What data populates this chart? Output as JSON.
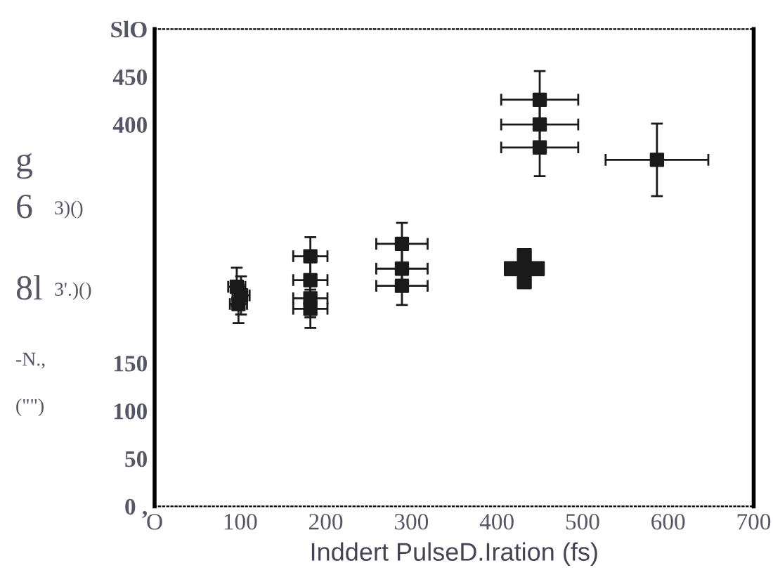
{
  "chart_data": {
    "type": "scatter",
    "xlabel": "Inddert PulseD.Iration (fs)",
    "annotations": [
      "g",
      "6",
      "3)()",
      "8l",
      "3'.)()",
      "-N.,",
      "(\"\")"
    ],
    "xlim": [
      0,
      700
    ],
    "xticks": [
      {
        "value": 0,
        "label": "O"
      },
      100,
      200,
      300,
      400,
      500,
      600,
      700
    ],
    "ylim": [
      0,
      500
    ],
    "yticks": [
      {
        "value": 0,
        "label": "0 ,"
      },
      50,
      100,
      150,
      400,
      450,
      {
        "value": 500,
        "label": "SlO"
      }
    ],
    "grid": false,
    "legend": false,
    "series": [
      {
        "marker": "square",
        "color": "#1a1a1a",
        "x": [
          96,
          101,
          98,
          182,
          182,
          182,
          182,
          289,
          289,
          289,
          450,
          450,
          450,
          587
        ],
        "values": [
          230,
          221,
          212,
          262,
          237,
          218,
          207,
          275,
          249,
          231,
          426,
          400,
          376,
          363
        ],
        "xerrors": [
          10,
          10,
          10,
          20,
          20,
          20,
          20,
          30,
          30,
          30,
          45,
          45,
          45,
          60
        ],
        "errors": [
          20,
          20,
          20,
          20,
          20,
          20,
          20,
          22,
          20,
          20,
          30,
          30,
          30,
          38
        ]
      },
      {
        "marker": "cross",
        "color": "#1a1a1a",
        "x": [
          432
        ],
        "values": [
          249
        ]
      }
    ]
  }
}
